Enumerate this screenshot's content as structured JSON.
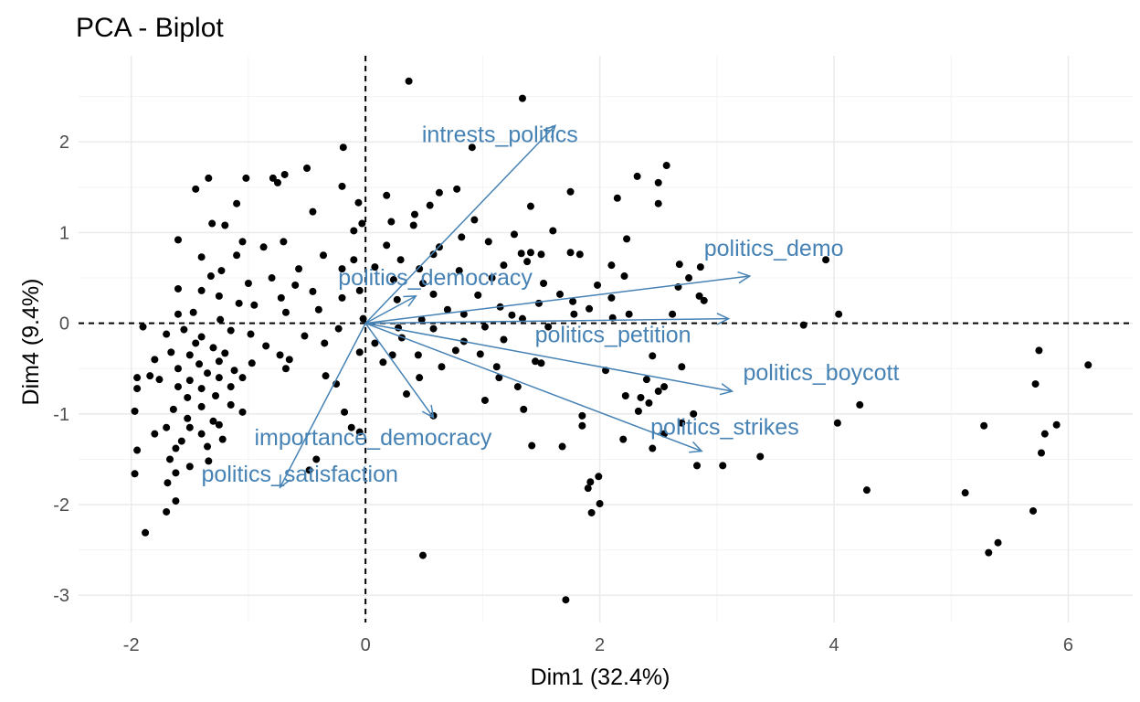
{
  "chart_data": {
    "type": "scatter",
    "title": "PCA - Biplot",
    "xlabel": "Dim1 (32.4%)",
    "ylabel": "Dim4 (9.4%)",
    "xlim": [
      -2.45,
      6.55
    ],
    "ylim": [
      -3.3,
      2.95
    ],
    "xticks": [
      -2,
      0,
      2,
      4,
      6
    ],
    "yticks": [
      -3,
      -2,
      -1,
      0,
      1,
      2
    ],
    "grid": true,
    "reference_lines": {
      "x": 0,
      "y": 0,
      "style": "dashed"
    },
    "point_color": "#000000",
    "arrow_color": "#4682b4",
    "variables": [
      {
        "name": "intrests_politics",
        "x": 1.62,
        "y": 2.18
      },
      {
        "name": "politics_demo",
        "x": 3.28,
        "y": 0.52
      },
      {
        "name": "politics_democracy",
        "x": 0.43,
        "y": 0.3
      },
      {
        "name": "politics_petition",
        "x": 3.1,
        "y": 0.05
      },
      {
        "name": "politics_boycott",
        "x": 3.13,
        "y": -0.75
      },
      {
        "name": "politics_strikes",
        "x": 2.87,
        "y": -1.41
      },
      {
        "name": "importance_democracy",
        "x": 0.58,
        "y": -1.04
      },
      {
        "name": "politics_satisfaction",
        "x": -0.73,
        "y": -1.81
      }
    ],
    "points": [
      [
        0.37,
        2.67
      ],
      [
        1.34,
        2.48
      ],
      [
        -0.19,
        1.94
      ],
      [
        0.91,
        1.94
      ],
      [
        2.57,
        1.74
      ],
      [
        -0.5,
        1.71
      ],
      [
        -0.69,
        1.64
      ],
      [
        -0.79,
        1.6
      ],
      [
        -0.75,
        1.55
      ],
      [
        -1.34,
        1.6
      ],
      [
        -1.02,
        1.6
      ],
      [
        2.32,
        1.62
      ],
      [
        2.5,
        1.55
      ],
      [
        0.78,
        1.48
      ],
      [
        0.63,
        1.44
      ],
      [
        2.15,
        1.38
      ],
      [
        -1.45,
        1.48
      ],
      [
        -0.2,
        1.51
      ],
      [
        -0.06,
        1.33
      ],
      [
        0.18,
        1.41
      ],
      [
        1.75,
        1.45
      ],
      [
        -1.1,
        1.32
      ],
      [
        0.55,
        1.3
      ],
      [
        -0.45,
        1.23
      ],
      [
        0.42,
        1.2
      ],
      [
        1.41,
        1.29
      ],
      [
        2.5,
        1.32
      ],
      [
        -0.03,
        1.1
      ],
      [
        0.22,
        1.12
      ],
      [
        -1.31,
        1.1
      ],
      [
        -0.1,
        1.02
      ],
      [
        0.41,
        1.08
      ],
      [
        0.93,
        1.14
      ],
      [
        1.6,
        1.02
      ],
      [
        -1.2,
        1.08
      ],
      [
        0.82,
        0.95
      ],
      [
        1.05,
        0.9
      ],
      [
        1.27,
        0.98
      ],
      [
        -1.05,
        0.9
      ],
      [
        2.23,
        0.93
      ],
      [
        -0.7,
        0.9
      ],
      [
        0.18,
        0.86
      ],
      [
        0.63,
        0.84
      ],
      [
        1.41,
        0.78
      ],
      [
        1.75,
        0.78
      ],
      [
        -0.87,
        0.84
      ],
      [
        -1.6,
        0.92
      ],
      [
        -0.36,
        0.75
      ],
      [
        -0.1,
        0.7
      ],
      [
        0.3,
        0.7
      ],
      [
        0.58,
        0.76
      ],
      [
        1.33,
        0.77
      ],
      [
        1.5,
        0.76
      ],
      [
        1.83,
        0.76
      ],
      [
        -1.1,
        0.75
      ],
      [
        -1.4,
        0.73
      ],
      [
        2.1,
        0.64
      ],
      [
        2.68,
        0.65
      ],
      [
        2.86,
        0.62
      ],
      [
        3.93,
        0.7
      ],
      [
        -0.57,
        0.6
      ],
      [
        -0.2,
        0.6
      ],
      [
        0.08,
        0.62
      ],
      [
        0.46,
        0.6
      ],
      [
        0.8,
        0.58
      ],
      [
        1.18,
        0.64
      ],
      [
        1.38,
        0.68
      ],
      [
        -1.23,
        0.58
      ],
      [
        -1.32,
        0.52
      ],
      [
        2.21,
        0.52
      ],
      [
        2.76,
        0.5
      ],
      [
        -0.8,
        0.5
      ],
      [
        -0.6,
        0.42
      ],
      [
        0.24,
        0.48
      ],
      [
        0.49,
        0.44
      ],
      [
        1.08,
        0.5
      ],
      [
        1.52,
        0.44
      ],
      [
        1.98,
        0.42
      ],
      [
        -1.0,
        0.44
      ],
      [
        -1.6,
        0.38
      ],
      [
        -1.4,
        0.36
      ],
      [
        2.67,
        0.4
      ],
      [
        -0.45,
        0.35
      ],
      [
        -0.05,
        0.36
      ],
      [
        0.58,
        0.32
      ],
      [
        0.96,
        0.31
      ],
      [
        1.66,
        0.32
      ],
      [
        2.1,
        0.28
      ],
      [
        2.85,
        0.3
      ],
      [
        -1.25,
        0.3
      ],
      [
        -0.72,
        0.28
      ],
      [
        -0.2,
        0.28
      ],
      [
        0.27,
        0.26
      ],
      [
        1.48,
        0.22
      ],
      [
        1.77,
        0.24
      ],
      [
        2.89,
        0.25
      ],
      [
        -1.08,
        0.22
      ],
      [
        -0.95,
        0.2
      ],
      [
        -0.4,
        0.15
      ],
      [
        0.7,
        0.15
      ],
      [
        1.15,
        0.18
      ],
      [
        1.91,
        0.16
      ],
      [
        -1.47,
        0.12
      ],
      [
        -1.6,
        0.1
      ],
      [
        -0.68,
        0.12
      ],
      [
        0.84,
        0.1
      ],
      [
        1.25,
        0.09
      ],
      [
        1.78,
        0.1
      ],
      [
        2.25,
        0.1
      ],
      [
        2.62,
        0.1
      ],
      [
        4.04,
        0.1
      ],
      [
        -1.9,
        -0.04
      ],
      [
        -1.24,
        0.04
      ],
      [
        -0.02,
        0.05
      ],
      [
        0.48,
        0.04
      ],
      [
        1.34,
        0.05
      ],
      [
        2.11,
        0.06
      ],
      [
        3.74,
        -0.02
      ],
      [
        -1.55,
        -0.07
      ],
      [
        -1.15,
        -0.08
      ],
      [
        -0.23,
        -0.06
      ],
      [
        0.28,
        -0.05
      ],
      [
        0.58,
        -0.06
      ],
      [
        1.02,
        -0.04
      ],
      [
        1.56,
        -0.04
      ],
      [
        -1.7,
        -0.12
      ],
      [
        -1.4,
        -0.15
      ],
      [
        -0.98,
        -0.12
      ],
      [
        -0.52,
        -0.14
      ],
      [
        0.31,
        -0.16
      ],
      [
        0.84,
        -0.2
      ],
      [
        1.18,
        -0.18
      ],
      [
        -1.45,
        -0.22
      ],
      [
        -1.3,
        -0.27
      ],
      [
        -0.85,
        -0.25
      ],
      [
        -0.35,
        -0.22
      ],
      [
        0.08,
        -0.22
      ],
      [
        0.77,
        -0.3
      ],
      [
        -1.66,
        -0.32
      ],
      [
        -1.5,
        -0.35
      ],
      [
        -1.2,
        -0.33
      ],
      [
        -0.73,
        -0.35
      ],
      [
        -0.05,
        -0.32
      ],
      [
        0.23,
        -0.35
      ],
      [
        0.45,
        -0.35
      ],
      [
        0.98,
        -0.34
      ],
      [
        1.45,
        -0.42
      ],
      [
        2.45,
        -0.36
      ],
      [
        -1.8,
        -0.4
      ],
      [
        -1.42,
        -0.45
      ],
      [
        -1.25,
        -0.42
      ],
      [
        -0.97,
        -0.44
      ],
      [
        -0.65,
        -0.4
      ],
      [
        0.15,
        -0.43
      ],
      [
        1.5,
        -0.44
      ],
      [
        -1.6,
        -0.5
      ],
      [
        -1.35,
        -0.55
      ],
      [
        -1.12,
        -0.52
      ],
      [
        -0.68,
        -0.5
      ],
      [
        0.65,
        -0.48
      ],
      [
        1.12,
        -0.48
      ],
      [
        2.05,
        -0.52
      ],
      [
        2.7,
        -0.48
      ],
      [
        -1.95,
        -0.6
      ],
      [
        -1.76,
        -0.62
      ],
      [
        -1.5,
        -0.63
      ],
      [
        -1.25,
        -0.6
      ],
      [
        -1.05,
        -0.6
      ],
      [
        -0.34,
        -0.58
      ],
      [
        0.46,
        -0.6
      ],
      [
        1.14,
        -0.6
      ],
      [
        2.4,
        -0.62
      ],
      [
        -1.6,
        -0.7
      ],
      [
        -1.4,
        -0.72
      ],
      [
        -1.15,
        -0.7
      ],
      [
        1.3,
        -0.7
      ],
      [
        2.55,
        -0.7
      ],
      [
        -1.95,
        -0.72
      ],
      [
        -1.84,
        -0.58
      ],
      [
        -1.52,
        -0.82
      ],
      [
        -1.28,
        -0.8
      ],
      [
        -0.25,
        -0.67
      ],
      [
        0.35,
        -0.78
      ],
      [
        2.35,
        -0.82
      ],
      [
        2.5,
        -0.75
      ],
      [
        -1.64,
        -0.95
      ],
      [
        -1.4,
        -0.92
      ],
      [
        -1.15,
        -0.9
      ],
      [
        1.02,
        -0.85
      ],
      [
        2.22,
        -0.8
      ],
      [
        2.42,
        -0.88
      ],
      [
        4.22,
        -0.9
      ],
      [
        -1.97,
        -0.97
      ],
      [
        -1.05,
        -0.98
      ],
      [
        -0.18,
        -0.98
      ],
      [
        1.35,
        -0.95
      ],
      [
        2.33,
        -0.97
      ],
      [
        -1.52,
        -1.05
      ],
      [
        -1.3,
        -1.08
      ],
      [
        0.58,
        -1.02
      ],
      [
        1.85,
        -1.02
      ],
      [
        2.8,
        -1.0
      ],
      [
        -1.7,
        -1.15
      ],
      [
        -1.5,
        -1.15
      ],
      [
        -1.25,
        -1.12
      ],
      [
        -0.12,
        -1.15
      ],
      [
        1.85,
        -1.13
      ],
      [
        2.7,
        -1.1
      ],
      [
        4.03,
        -1.1
      ],
      [
        5.28,
        -1.13
      ],
      [
        5.9,
        -1.12
      ],
      [
        -1.8,
        -1.22
      ],
      [
        -1.4,
        -1.22
      ],
      [
        -0.05,
        -1.2
      ],
      [
        2.55,
        -1.22
      ],
      [
        5.8,
        -1.22
      ],
      [
        -1.57,
        -1.3
      ],
      [
        -1.22,
        -1.28
      ],
      [
        2.2,
        -1.28
      ],
      [
        5.72,
        -0.67
      ],
      [
        5.75,
        -0.3
      ],
      [
        6.17,
        -0.46
      ],
      [
        -1.95,
        -1.4
      ],
      [
        -1.62,
        -1.38
      ],
      [
        -1.35,
        -1.36
      ],
      [
        1.42,
        -1.35
      ],
      [
        2.45,
        -1.38
      ],
      [
        -1.67,
        -1.5
      ],
      [
        -0.42,
        -1.5
      ],
      [
        1.68,
        -1.36
      ],
      [
        3.37,
        -1.47
      ],
      [
        5.77,
        -1.43
      ],
      [
        -1.5,
        -1.58
      ],
      [
        -1.34,
        -1.52
      ],
      [
        2.83,
        -1.57
      ],
      [
        3.05,
        -1.57
      ],
      [
        -1.97,
        -1.66
      ],
      [
        -1.62,
        -1.65
      ],
      [
        -0.48,
        -1.62
      ],
      [
        1.99,
        -1.69
      ],
      [
        1.92,
        -1.75
      ],
      [
        -1.69,
        -1.76
      ],
      [
        1.9,
        -1.82
      ],
      [
        4.28,
        -1.84
      ],
      [
        5.12,
        -1.87
      ],
      [
        -1.62,
        -1.96
      ],
      [
        2.0,
        -1.99
      ],
      [
        1.93,
        -2.09
      ],
      [
        -1.7,
        -2.08
      ],
      [
        5.7,
        -2.07
      ],
      [
        -1.88,
        -2.31
      ],
      [
        5.4,
        -2.42
      ],
      [
        5.32,
        -2.53
      ],
      [
        0.49,
        -2.56
      ],
      [
        1.71,
        -3.05
      ]
    ]
  }
}
